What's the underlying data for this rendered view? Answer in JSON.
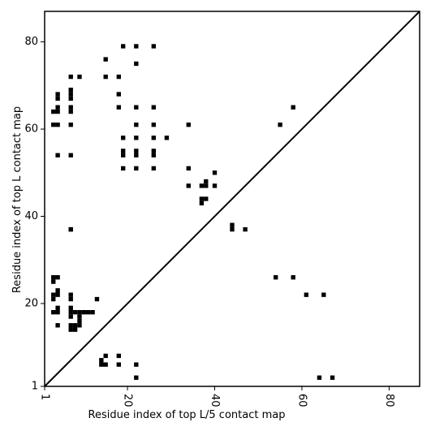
{
  "chart_data": {
    "type": "heatmap",
    "xlabel": "Residue index of top L/5 contact map",
    "ylabel": "Residue index of top L contact map",
    "xlim": [
      1,
      87
    ],
    "ylim": [
      1,
      87
    ],
    "x_ticks": [
      1,
      20,
      40,
      60,
      80
    ],
    "x_tick_labels": [
      "1",
      "20",
      "40",
      "60",
      "80"
    ],
    "y_ticks": [
      1,
      20,
      40,
      60,
      80
    ],
    "y_tick_labels": [
      "1",
      "20",
      "40",
      "60",
      "80"
    ],
    "x_tick_label_rotation": -90,
    "grid": false,
    "diagonal_line": true,
    "cell_color": "#000000",
    "line_color": "#000000",
    "cells_above_diagonal": [
      [
        19,
        79
      ],
      [
        22,
        79
      ],
      [
        26,
        79
      ],
      [
        15,
        76
      ],
      [
        22,
        75
      ],
      [
        7,
        72
      ],
      [
        9,
        72
      ],
      [
        15,
        72
      ],
      [
        18,
        72
      ],
      [
        7,
        69
      ],
      [
        4,
        68
      ],
      [
        7,
        68
      ],
      [
        18,
        68
      ],
      [
        4,
        67
      ],
      [
        7,
        67
      ],
      [
        4,
        65
      ],
      [
        7,
        65
      ],
      [
        18,
        65
      ],
      [
        22,
        65
      ],
      [
        26,
        65
      ],
      [
        3,
        64
      ],
      [
        4,
        64
      ],
      [
        7,
        64
      ],
      [
        3,
        61
      ],
      [
        4,
        61
      ],
      [
        7,
        61
      ],
      [
        22,
        61
      ],
      [
        26,
        61
      ],
      [
        34,
        61
      ],
      [
        19,
        58
      ],
      [
        22,
        58
      ],
      [
        26,
        58
      ],
      [
        29,
        58
      ],
      [
        19,
        55
      ],
      [
        22,
        55
      ],
      [
        26,
        55
      ],
      [
        19,
        54
      ],
      [
        22,
        54
      ],
      [
        26,
        54
      ],
      [
        4,
        54
      ],
      [
        7,
        54
      ],
      [
        19,
        51
      ],
      [
        22,
        51
      ],
      [
        26,
        51
      ],
      [
        34,
        51
      ],
      [
        40,
        50
      ],
      [
        38,
        48
      ],
      [
        34,
        47
      ],
      [
        37,
        47
      ],
      [
        38,
        47
      ],
      [
        40,
        47
      ],
      [
        37,
        44
      ],
      [
        38,
        44
      ],
      [
        37,
        43
      ],
      [
        44,
        38
      ],
      [
        44,
        37
      ],
      [
        47,
        37
      ],
      [
        7,
        37
      ],
      [
        7,
        37
      ],
      [
        58,
        65
      ],
      [
        55,
        61
      ]
    ],
    "cells_below_diagonal": [
      [
        3,
        26
      ],
      [
        4,
        26
      ],
      [
        3,
        25
      ],
      [
        4,
        23
      ],
      [
        3,
        22
      ],
      [
        4,
        22
      ],
      [
        7,
        22
      ],
      [
        3,
        21
      ],
      [
        7,
        21
      ],
      [
        13,
        21
      ],
      [
        4,
        19
      ],
      [
        7,
        19
      ],
      [
        3,
        18
      ],
      [
        4,
        18
      ],
      [
        7,
        18
      ],
      [
        8,
        18
      ],
      [
        9,
        18
      ],
      [
        10,
        18
      ],
      [
        11,
        18
      ],
      [
        12,
        18
      ],
      [
        7,
        17
      ],
      [
        9,
        17
      ],
      [
        9,
        16
      ],
      [
        4,
        15
      ],
      [
        7,
        15
      ],
      [
        8,
        15
      ],
      [
        9,
        15
      ],
      [
        7,
        14
      ],
      [
        8,
        14
      ],
      [
        15,
        8
      ],
      [
        18,
        8
      ],
      [
        14,
        7
      ],
      [
        14,
        6
      ],
      [
        15,
        6
      ],
      [
        18,
        6
      ],
      [
        22,
        6
      ],
      [
        22,
        3
      ],
      [
        54,
        26
      ],
      [
        58,
        26
      ],
      [
        61,
        22
      ],
      [
        65,
        22
      ],
      [
        64,
        3
      ],
      [
        67,
        3
      ]
    ]
  }
}
